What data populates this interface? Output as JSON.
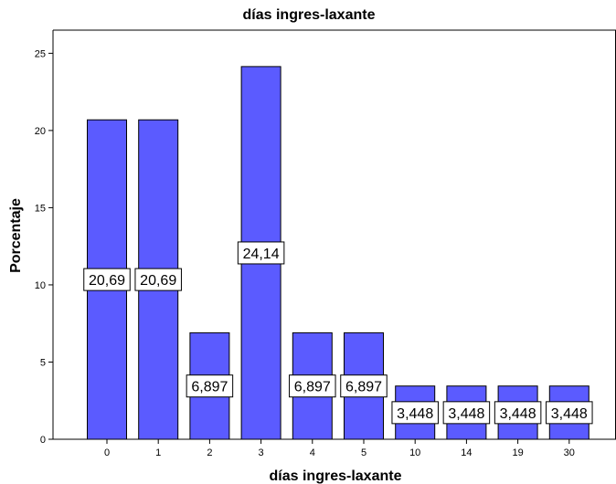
{
  "chart_data": {
    "type": "bar",
    "title": "días ingres-laxante",
    "xlabel": "días ingres-laxante",
    "ylabel": "Porcentaje",
    "categories": [
      "0",
      "1",
      "2",
      "3",
      "4",
      "5",
      "10",
      "14",
      "19",
      "30"
    ],
    "values": [
      20.69,
      20.69,
      6.897,
      24.14,
      6.897,
      6.897,
      3.448,
      3.448,
      3.448,
      3.448
    ],
    "data_labels": [
      "20,69",
      "20,69",
      "6,897",
      "24,14",
      "6,897",
      "6,897",
      "3,448",
      "3,448",
      "3,448",
      "3,448"
    ],
    "ylim": [
      0,
      26.5
    ],
    "yticks": [
      0,
      5,
      10,
      15,
      20,
      25
    ],
    "ytick_labels": [
      "0",
      "5",
      "10",
      "15",
      "20",
      "25"
    ],
    "grid": false,
    "legend": "none",
    "colors": {
      "bar_fill": "#5B5BFF",
      "bar_stroke": "#000000",
      "label_box_fill": "#FFFFFF",
      "label_box_stroke": "#000000",
      "axis": "#000000"
    }
  }
}
